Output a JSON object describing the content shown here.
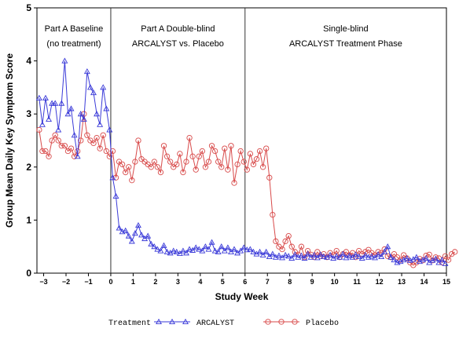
{
  "chart_data": {
    "type": "line",
    "title": "",
    "xlabel": "Study Week",
    "ylabel": "Group Mean Daily Key Symptom Score",
    "xlim": [
      -3.3,
      15
    ],
    "ylim": [
      0,
      5
    ],
    "x_ticks": [
      -3,
      -2,
      -1,
      0,
      1,
      2,
      3,
      4,
      5,
      6,
      7,
      8,
      9,
      10,
      11,
      12,
      13,
      14,
      15
    ],
    "x_tick_labels": [
      "−3",
      "−2",
      "−1",
      "0",
      "1",
      "2",
      "3",
      "4",
      "5",
      "6",
      "7",
      "8",
      "9",
      "10",
      "11",
      "12",
      "13",
      "14",
      "15"
    ],
    "y_ticks": [
      0,
      1,
      2,
      3,
      4,
      5
    ],
    "y_tick_labels": [
      "0",
      "1",
      "2",
      "3",
      "4",
      "5"
    ],
    "phase_dividers": [
      0,
      6
    ],
    "phase_labels": [
      {
        "lines": [
          "Part A Baseline",
          "(no treatment)"
        ]
      },
      {
        "lines": [
          "Part A Double-blind",
          "ARCALYST vs. Placebo"
        ]
      },
      {
        "lines": [
          "Single-blind",
          "ARCALYST Treatment Phase"
        ]
      }
    ],
    "legend": {
      "title": "Treatment",
      "position": "bottom"
    },
    "series": [
      {
        "name": "ARCALYST",
        "color": "#3a3ad8",
        "marker": "triangle",
        "x_start": -3.2,
        "x_step": 0.1429,
        "values": [
          3.3,
          2.8,
          3.3,
          2.9,
          3.2,
          3.2,
          2.7,
          3.2,
          4.0,
          3.0,
          3.1,
          2.6,
          2.2,
          3.0,
          2.9,
          3.8,
          3.5,
          3.4,
          3.0,
          2.8,
          3.5,
          3.1,
          2.7,
          1.8,
          1.45,
          0.85,
          0.78,
          0.8,
          0.7,
          0.6,
          0.75,
          0.9,
          0.72,
          0.65,
          0.7,
          0.55,
          0.5,
          0.45,
          0.42,
          0.52,
          0.4,
          0.38,
          0.42,
          0.4,
          0.37,
          0.42,
          0.38,
          0.45,
          0.43,
          0.48,
          0.45,
          0.42,
          0.5,
          0.45,
          0.58,
          0.42,
          0.4,
          0.5,
          0.42,
          0.48,
          0.4,
          0.45,
          0.38,
          0.42,
          0.48,
          0.44,
          0.45,
          0.4,
          0.36,
          0.4,
          0.34,
          0.4,
          0.31,
          0.36,
          0.3,
          0.33,
          0.29,
          0.34,
          0.32,
          0.28,
          0.35,
          0.3,
          0.33,
          0.28,
          0.36,
          0.3,
          0.34,
          0.29,
          0.35,
          0.31,
          0.3,
          0.34,
          0.28,
          0.32,
          0.3,
          0.36,
          0.29,
          0.33,
          0.3,
          0.35,
          0.31,
          0.28,
          0.34,
          0.3,
          0.32,
          0.29,
          0.35,
          0.31,
          0.4,
          0.5,
          0.3,
          0.25,
          0.2,
          0.22,
          0.25,
          0.28,
          0.24,
          0.26,
          0.3,
          0.22,
          0.25,
          0.28,
          0.2,
          0.24,
          0.27,
          0.2,
          0.25,
          0.18
        ]
      },
      {
        "name": "Placebo",
        "color": "#d84a4a",
        "marker": "circle",
        "x_start": -3.2,
        "x_step": 0.1429,
        "values": [
          2.7,
          2.3,
          2.3,
          2.2,
          2.5,
          2.6,
          2.5,
          2.4,
          2.4,
          2.3,
          2.35,
          2.2,
          2.3,
          2.5,
          3.0,
          2.6,
          2.5,
          2.45,
          2.55,
          2.35,
          2.6,
          2.3,
          2.2,
          2.3,
          1.8,
          2.1,
          2.05,
          1.9,
          2.0,
          1.75,
          2.1,
          2.5,
          2.15,
          2.1,
          2.05,
          2.0,
          2.1,
          2.0,
          1.9,
          2.4,
          2.2,
          2.1,
          2.0,
          2.05,
          2.25,
          1.9,
          2.1,
          2.55,
          2.2,
          1.95,
          2.2,
          2.3,
          2.0,
          2.1,
          2.4,
          2.3,
          2.1,
          2.0,
          2.35,
          1.95,
          2.4,
          1.7,
          2.05,
          2.3,
          2.1,
          1.95,
          2.25,
          2.05,
          2.15,
          2.3,
          2.0,
          2.35,
          1.8,
          1.1,
          0.6,
          0.5,
          0.45,
          0.6,
          0.7,
          0.5,
          0.4,
          0.35,
          0.5,
          0.3,
          0.42,
          0.35,
          0.3,
          0.4,
          0.32,
          0.36,
          0.3,
          0.38,
          0.34,
          0.42,
          0.3,
          0.36,
          0.4,
          0.34,
          0.38,
          0.3,
          0.42,
          0.36,
          0.4,
          0.44,
          0.38,
          0.34,
          0.4,
          0.38,
          0.45,
          0.32,
          0.3,
          0.36,
          0.3,
          0.25,
          0.34,
          0.28,
          0.2,
          0.15,
          0.2,
          0.27,
          0.24,
          0.33,
          0.35,
          0.24,
          0.3,
          0.28,
          0.2,
          0.32,
          0.25,
          0.36,
          0.4
        ]
      }
    ]
  }
}
